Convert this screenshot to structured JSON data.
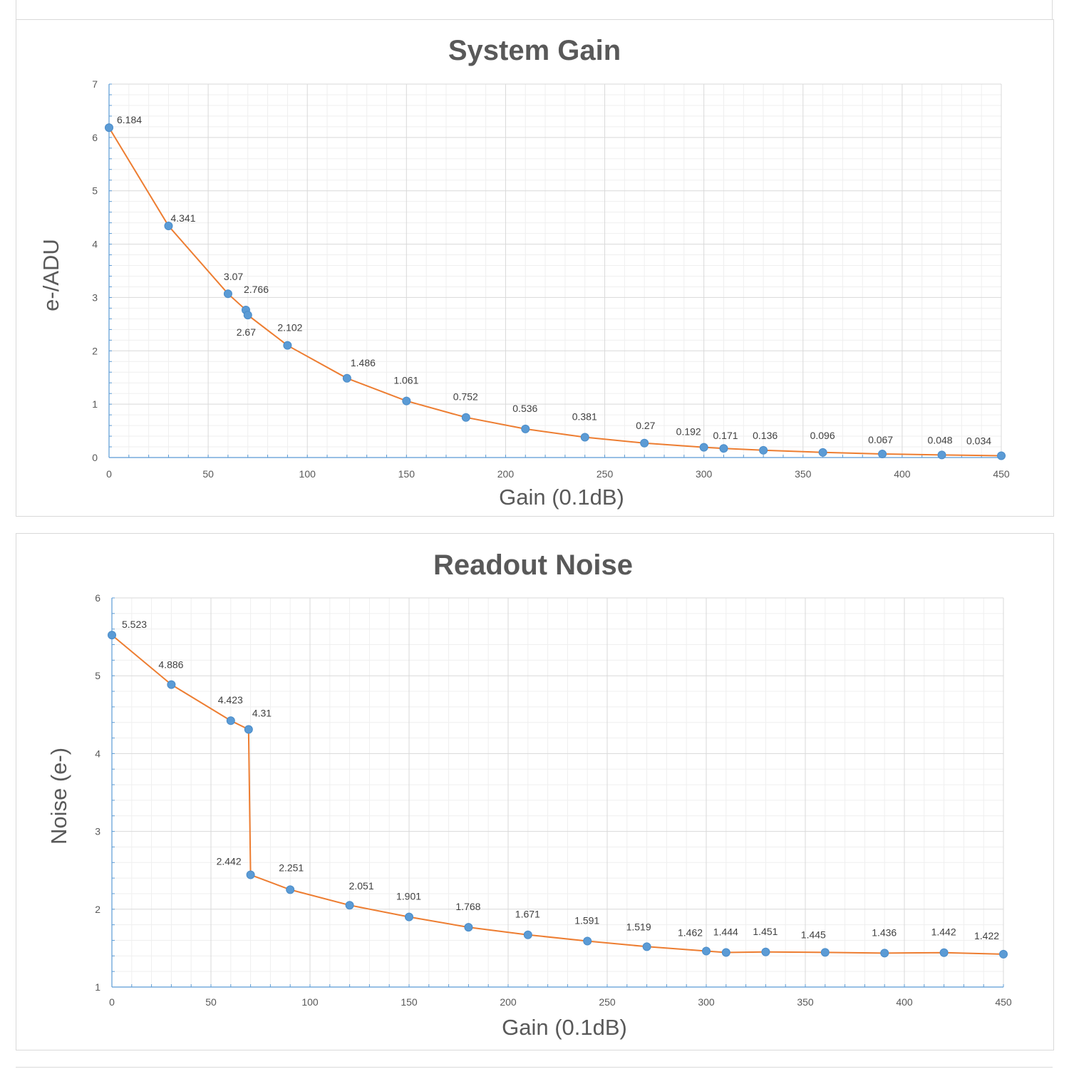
{
  "chart_data": [
    {
      "type": "line",
      "title": "System Gain",
      "xlabel": "Gain (0.1dB)",
      "ylabel": "e-/ADU",
      "xlim": [
        0,
        450
      ],
      "ylim": [
        0,
        7
      ],
      "x_ticks": [
        0,
        50,
        100,
        150,
        200,
        250,
        300,
        350,
        400,
        450
      ],
      "y_ticks": [
        0,
        1,
        2,
        3,
        4,
        5,
        6,
        7
      ],
      "grid": true,
      "legend": "none",
      "colors": {
        "line": "#ed7d31",
        "marker": "#5b9bd5"
      },
      "x": [
        0,
        30,
        60,
        69,
        70,
        90,
        120,
        150,
        180,
        210,
        240,
        270,
        300,
        310,
        330,
        360,
        390,
        420,
        450
      ],
      "y": [
        6.184,
        4.341,
        3.07,
        2.766,
        2.67,
        2.102,
        1.486,
        1.061,
        0.752,
        0.536,
        0.381,
        0.27,
        0.192,
        0.171,
        0.136,
        0.096,
        0.067,
        0.048,
        0.034
      ],
      "labels": [
        "6.184",
        "4.341",
        "3.07",
        "2.766",
        "2.67",
        "2.102",
        "1.486",
        "1.061",
        "0.752",
        "0.536",
        "0.381",
        "0.27",
        "0.192",
        "0.171",
        "0.136",
        "0.096",
        "0.067",
        "0.048",
        "0.034"
      ]
    },
    {
      "type": "line",
      "title": "Readout Noise",
      "xlabel": "Gain (0.1dB)",
      "ylabel": "Noise (e-)",
      "xlim": [
        0,
        450
      ],
      "ylim": [
        1,
        6
      ],
      "x_ticks": [
        0,
        50,
        100,
        150,
        200,
        250,
        300,
        350,
        400,
        450
      ],
      "y_ticks": [
        1,
        2,
        3,
        4,
        5,
        6
      ],
      "grid": true,
      "legend": "none",
      "colors": {
        "line": "#ed7d31",
        "marker": "#5b9bd5"
      },
      "x": [
        0,
        30,
        60,
        69,
        70,
        90,
        120,
        150,
        180,
        210,
        240,
        270,
        300,
        310,
        330,
        360,
        390,
        420,
        450
      ],
      "y": [
        5.523,
        4.886,
        4.423,
        4.31,
        2.442,
        2.251,
        2.051,
        1.901,
        1.768,
        1.671,
        1.591,
        1.519,
        1.462,
        1.444,
        1.451,
        1.445,
        1.436,
        1.442,
        1.422
      ],
      "labels": [
        "5.523",
        "4.886",
        "4.423",
        "4.31",
        "2.442",
        "2.251",
        "2.051",
        "1.901",
        "1.768",
        "1.671",
        "1.591",
        "1.519",
        "1.462",
        "1.444",
        "1.451",
        "1.445",
        "1.436",
        "1.442",
        "1.422"
      ]
    }
  ]
}
